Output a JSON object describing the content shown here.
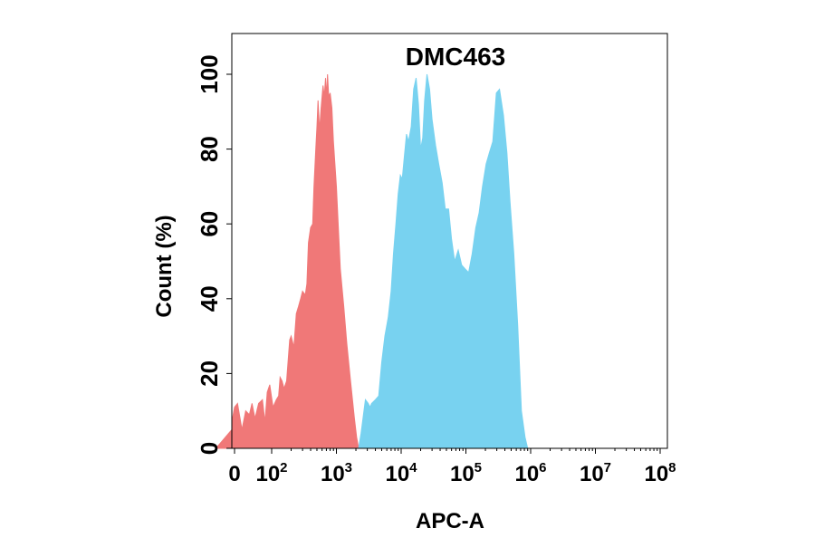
{
  "chart_data": {
    "type": "area",
    "title": "DMC463",
    "xlabel": "APC-A",
    "ylabel": "Count  (%)",
    "x_scale": "biexponential",
    "xlim": [
      -50,
      100000000
    ],
    "ylim": [
      0,
      110
    ],
    "y_ticks": [
      0,
      20,
      40,
      60,
      80,
      100
    ],
    "x_ticks": [
      {
        "value": 0,
        "base": "0",
        "exp": ""
      },
      {
        "value": 100,
        "base": "10",
        "exp": "2"
      },
      {
        "value": 1000,
        "base": "10",
        "exp": "3"
      },
      {
        "value": 10000,
        "base": "10",
        "exp": "4"
      },
      {
        "value": 100000,
        "base": "10",
        "exp": "5"
      },
      {
        "value": 1000000,
        "base": "10",
        "exp": "6"
      },
      {
        "value": 10000000,
        "base": "10",
        "exp": "7"
      },
      {
        "value": 100000000,
        "base": "10",
        "exp": "8"
      }
    ],
    "grid": false,
    "legend": "none",
    "series": [
      {
        "color": "#f07878",
        "x": [
          -50,
          -30,
          0,
          8,
          15,
          20,
          30,
          40,
          47,
          55,
          65,
          75,
          82,
          88,
          95,
          105,
          118,
          128,
          135,
          145,
          155,
          170,
          190,
          200,
          220,
          240,
          260,
          280,
          300,
          330,
          350,
          370,
          400,
          430,
          450,
          480,
          500,
          520,
          550,
          580,
          620,
          650,
          680,
          700,
          730,
          760,
          800,
          850,
          900,
          1000,
          1150,
          1300,
          1450,
          1650,
          1900,
          2050,
          2200
        ],
        "y": [
          5,
          7,
          11,
          12,
          8,
          5,
          10,
          9,
          12,
          8,
          12,
          13,
          7,
          15,
          17,
          11,
          13,
          14,
          19,
          18,
          16,
          18,
          29,
          30,
          27,
          36,
          38,
          40,
          42,
          41,
          44,
          55,
          59,
          60,
          70,
          80,
          86,
          93,
          85,
          91,
          97,
          94,
          99,
          94,
          100,
          94,
          95,
          91,
          82,
          70,
          48,
          38,
          28,
          18,
          8,
          3,
          0
        ]
      },
      {
        "color": "#78d2f0",
        "x": [
          2200,
          2400,
          2800,
          3100,
          3300,
          3500,
          4000,
          4500,
          5000,
          5600,
          6300,
          7000,
          7600,
          8300,
          9000,
          9700,
          10400,
          11200,
          12100,
          13000,
          14300,
          15600,
          17000,
          18500,
          20000,
          21500,
          23000,
          25000,
          27500,
          30000,
          34000,
          38000,
          43000,
          48000,
          54000,
          60000,
          67000,
          76000,
          86000,
          97000,
          110000,
          125000,
          142000,
          160000,
          180000,
          205000,
          230000,
          260000,
          295000,
          330000,
          380000,
          430000,
          480000,
          550000,
          630000,
          720000,
          820000,
          900000
        ],
        "y": [
          0,
          4,
          13,
          12,
          11,
          12,
          13,
          14,
          23,
          30,
          35,
          42,
          52,
          60,
          68,
          73,
          72,
          78,
          84,
          82,
          86,
          96,
          99,
          92,
          80,
          83,
          93,
          100,
          96,
          88,
          81,
          76,
          71,
          64,
          64,
          56,
          50,
          53,
          49,
          48,
          47,
          52,
          59,
          63,
          70,
          76,
          79,
          82,
          95,
          96,
          89,
          79,
          66,
          52,
          33,
          10,
          3,
          0
        ]
      }
    ]
  }
}
